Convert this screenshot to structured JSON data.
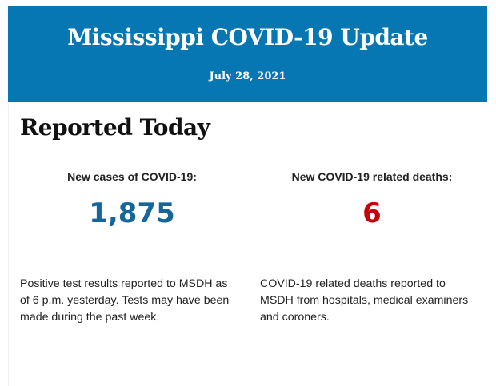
{
  "header": {
    "title": "Mississippi COVID-19 Update",
    "date": "July 28, 2021",
    "background": "#0677b3"
  },
  "section_title": "Reported Today",
  "cases": {
    "label": "New cases of COVID-19:",
    "value": "1,875",
    "color": "#15669a",
    "description": "Positive test results reported to MSDH as of 6 p.m. yesterday. Tests may have been made during the past week,"
  },
  "deaths": {
    "label": "New COVID-19 related deaths:",
    "value": "6",
    "color": "#c8000a",
    "description": "COVID-19 related deaths reported to MSDH from hospitals, medical examiners and coroners."
  }
}
